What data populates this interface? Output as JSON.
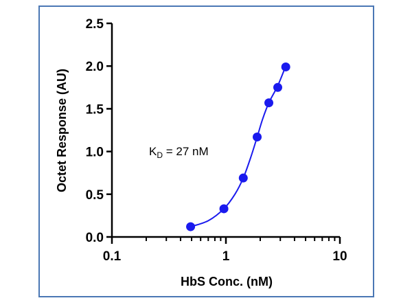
{
  "chart_data": {
    "type": "scatter",
    "xlabel": "HbS Conc. (nM)",
    "ylabel": "Octet Response (AU)",
    "xscale": "log",
    "xlim": [
      0.1,
      10
    ],
    "ylim": [
      0,
      2.5
    ],
    "xticks": [
      {
        "value": 0.1,
        "label": "0.1"
      },
      {
        "value": 1,
        "label": "1"
      },
      {
        "value": 10,
        "label": "10"
      }
    ],
    "yticks": [
      {
        "value": 0.0,
        "label": "0.0"
      },
      {
        "value": 0.5,
        "label": "0.5"
      },
      {
        "value": 1.0,
        "label": "1.0"
      },
      {
        "value": 1.5,
        "label": "1.5"
      },
      {
        "value": 2.0,
        "label": "2.0"
      },
      {
        "value": 2.5,
        "label": "2.5"
      }
    ],
    "series": [
      {
        "color": "#1a1aee",
        "points": [
          {
            "x": 0.49,
            "y": 0.12
          },
          {
            "x": 0.96,
            "y": 0.33
          },
          {
            "x": 1.42,
            "y": 0.69
          },
          {
            "x": 1.88,
            "y": 1.17
          },
          {
            "x": 2.38,
            "y": 1.57
          },
          {
            "x": 2.85,
            "y": 1.75
          },
          {
            "x": 3.35,
            "y": 1.99
          }
        ]
      }
    ],
    "fit_curve": [
      {
        "x": 0.49,
        "y": 0.12
      },
      {
        "x": 0.7,
        "y": 0.19
      },
      {
        "x": 0.96,
        "y": 0.33
      },
      {
        "x": 1.2,
        "y": 0.5
      },
      {
        "x": 1.42,
        "y": 0.69
      },
      {
        "x": 1.65,
        "y": 0.93
      },
      {
        "x": 1.88,
        "y": 1.17
      },
      {
        "x": 2.1,
        "y": 1.38
      },
      {
        "x": 2.38,
        "y": 1.57
      },
      {
        "x": 2.85,
        "y": 1.77
      },
      {
        "x": 3.35,
        "y": 2.0
      }
    ],
    "annotation": {
      "prefix": "K",
      "subscript": "D",
      "suffix": " = 27 nM"
    },
    "grid": false,
    "legend": "none"
  }
}
